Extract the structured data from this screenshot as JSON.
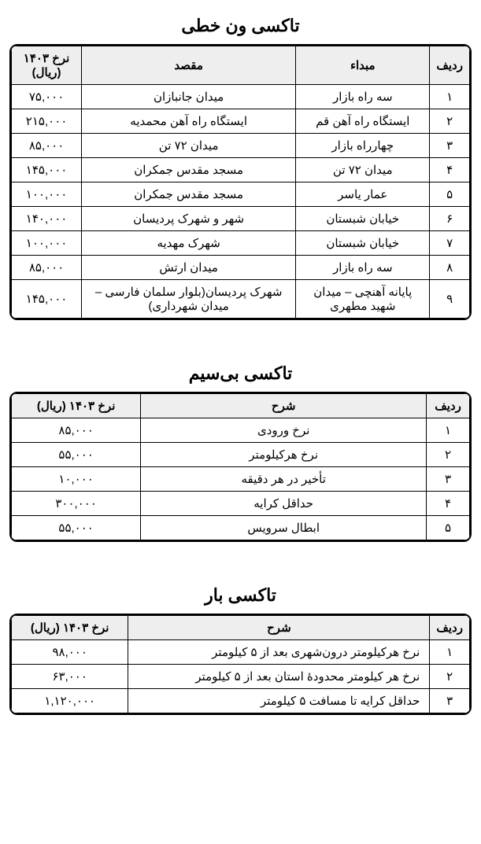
{
  "tables": [
    {
      "title": "تاکسی ون خطی",
      "class": "t1",
      "columns": [
        {
          "key": "radif",
          "label": "ردیف",
          "colClass": "col-radif"
        },
        {
          "key": "origin",
          "label": "مبداء",
          "colClass": "col-origin"
        },
        {
          "key": "dest",
          "label": "مقصد",
          "colClass": "col-dest"
        },
        {
          "key": "rate",
          "label": "نرخ ۱۴۰۳ (ریال)",
          "colClass": "col-rate",
          "cellClass": "rate"
        }
      ],
      "rows": [
        {
          "radif": "۱",
          "origin": "سه راه بازار",
          "dest": "میدان جانبازان",
          "rate": "۷۵,۰۰۰"
        },
        {
          "radif": "۲",
          "origin": "ایستگاه راه آهن قم",
          "dest": "ایستگاه راه آهن محمدیه",
          "rate": "۲۱۵,۰۰۰"
        },
        {
          "radif": "۳",
          "origin": "چهارراه بازار",
          "dest": "میدان ۷۲ تن",
          "rate": "۸۵,۰۰۰"
        },
        {
          "radif": "۴",
          "origin": "میدان ۷۲ تن",
          "dest": "مسجد مقدس جمکران",
          "rate": "۱۴۵,۰۰۰"
        },
        {
          "radif": "۵",
          "origin": "عمار یاسر",
          "dest": "مسجد مقدس جمکران",
          "rate": "۱۰۰,۰۰۰"
        },
        {
          "radif": "۶",
          "origin": "خیابان شبستان",
          "dest": "شهر و شهرک پردیسان",
          "rate": "۱۴۰,۰۰۰"
        },
        {
          "radif": "۷",
          "origin": "خیابان شبستان",
          "dest": "شهرک مهدیه",
          "rate": "۱۰۰,۰۰۰"
        },
        {
          "radif": "۸",
          "origin": "سه راه بازار",
          "dest": "میدان ارتش",
          "rate": "۸۵,۰۰۰"
        },
        {
          "radif": "۹",
          "origin": "پایانه آهنچی – میدان شهید مطهری",
          "dest": "شهرک پردیسان(بلوار سلمان فارسی – میدان شهرداری)",
          "rate": "۱۴۵,۰۰۰"
        }
      ]
    },
    {
      "title": "تاکسی بی‌سیم",
      "class": "t2",
      "columns": [
        {
          "key": "radif",
          "label": "ردیف",
          "colClass": "col-radif"
        },
        {
          "key": "desc",
          "label": "شرح",
          "colClass": "col-desc"
        },
        {
          "key": "rate",
          "label": "نرخ ۱۴۰۳ (ریال)",
          "colClass": "col-rate",
          "cellClass": "rate"
        }
      ],
      "rows": [
        {
          "radif": "۱",
          "desc": "نرخ ورودی",
          "rate": "۸۵,۰۰۰"
        },
        {
          "radif": "۲",
          "desc": "نرخ هرکیلومتر",
          "rate": "۵۵,۰۰۰"
        },
        {
          "radif": "۳",
          "desc": "تأخیر در هر دقیقه",
          "rate": "۱۰,۰۰۰"
        },
        {
          "radif": "۴",
          "desc": "حداقل کرایه",
          "rate": "۳۰۰,۰۰۰"
        },
        {
          "radif": "۵",
          "desc": "ابطال سرویس",
          "rate": "۵۵,۰۰۰"
        }
      ]
    },
    {
      "title": "تاکسی بار",
      "class": "t3",
      "columns": [
        {
          "key": "radif",
          "label": "ردیف",
          "colClass": "col-radif"
        },
        {
          "key": "desc",
          "label": "شرح",
          "colClass": "col-desc",
          "cellClass": "desc"
        },
        {
          "key": "rate",
          "label": "نرخ ۱۴۰۳ (ریال)",
          "colClass": "col-rate",
          "cellClass": "rate"
        }
      ],
      "rows": [
        {
          "radif": "۱",
          "desc": "نرخ هرکیلومتر درون‌شهری بعد از ۵ کیلومتر",
          "rate": "۹۸,۰۰۰"
        },
        {
          "radif": "۲",
          "desc": "نرخ هر کیلومتر محدودهٔ استان بعد از ۵ کیلومتر",
          "rate": "۶۳,۰۰۰"
        },
        {
          "radif": "۳",
          "desc": "حداقل کرایه تا مسافت ۵ کیلومتر",
          "rate": "۱,۱۲۰,۰۰۰"
        }
      ]
    }
  ]
}
